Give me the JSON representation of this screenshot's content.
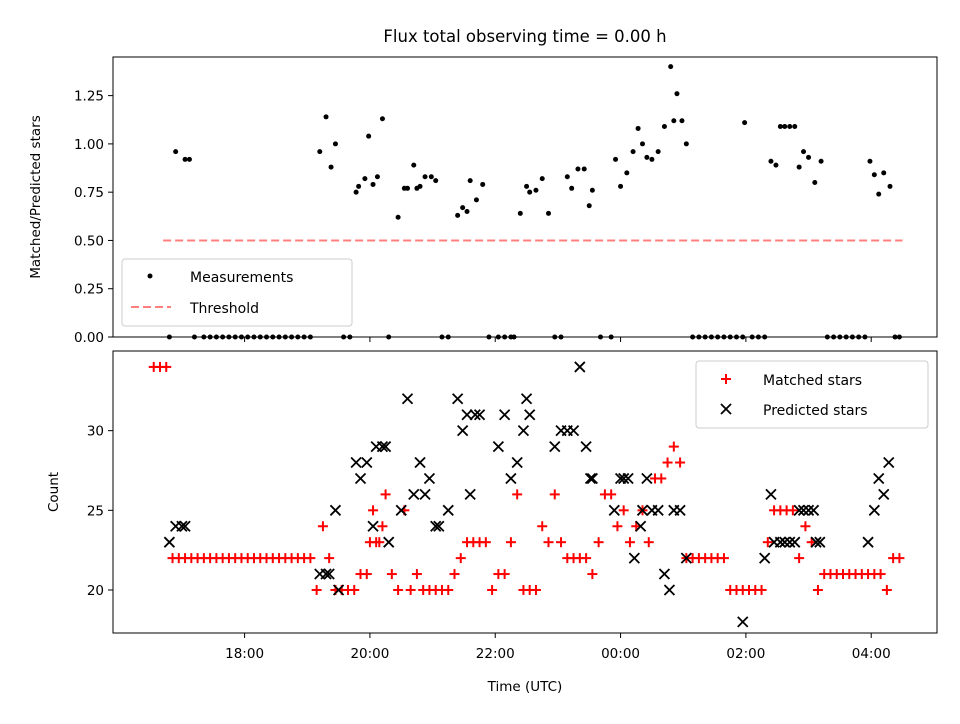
{
  "chart_data": [
    {
      "type": "scatter",
      "title": "Flux total observing time = 0.00 h",
      "xlabel": "",
      "ylabel": "Matched/Predicted stars",
      "x_unit": "hours UTC (values past 24 are after midnight)",
      "xlim": [
        15.9,
        29.05
      ],
      "ylim": [
        0,
        1.45
      ],
      "yticks": [
        "0.00",
        "0.25",
        "0.50",
        "0.75",
        "1.00",
        "1.25"
      ],
      "legend_loc": "lower-left",
      "grid": false,
      "threshold": {
        "name": "Threshold",
        "value": 0.5,
        "x_start": 16.7,
        "x_end": 28.5,
        "color": "#ff7f7f"
      },
      "series": [
        {
          "name": "Measurements",
          "color": "#000000",
          "x": [
            16.8,
            16.9,
            17.05,
            17.12,
            17.2,
            17.35,
            17.45,
            17.55,
            17.65,
            17.75,
            17.85,
            17.95,
            18.05,
            18.15,
            18.25,
            18.35,
            18.45,
            18.55,
            18.65,
            18.75,
            18.85,
            18.95,
            19.05,
            19.2,
            19.3,
            19.38,
            19.45,
            19.58,
            19.68,
            19.78,
            19.82,
            19.92,
            19.98,
            20.05,
            20.12,
            20.2,
            20.3,
            20.45,
            20.55,
            20.6,
            20.7,
            20.75,
            20.8,
            20.88,
            20.98,
            21.05,
            21.15,
            21.25,
            21.4,
            21.48,
            21.55,
            21.6,
            21.7,
            21.8,
            21.9,
            22.05,
            22.15,
            22.25,
            22.3,
            22.4,
            22.5,
            22.55,
            22.65,
            22.75,
            22.85,
            22.95,
            23.05,
            23.15,
            23.22,
            23.32,
            23.42,
            23.5,
            23.55,
            23.68,
            23.85,
            23.92,
            24.0,
            24.1,
            24.2,
            24.28,
            24.35,
            24.42,
            24.5,
            24.6,
            24.7,
            24.8,
            24.85,
            24.9,
            24.98,
            25.05,
            25.15,
            25.25,
            25.35,
            25.45,
            25.55,
            25.65,
            25.75,
            25.85,
            25.95,
            25.98,
            26.1,
            26.2,
            26.3,
            26.4,
            26.48,
            26.55,
            26.62,
            26.7,
            26.78,
            26.85,
            26.92,
            27.0,
            27.1,
            27.2,
            27.3,
            27.4,
            27.5,
            27.6,
            27.7,
            27.8,
            27.9,
            27.98,
            28.05,
            28.12,
            28.2,
            28.3,
            28.38,
            28.45
          ],
          "y": [
            0.0,
            0.96,
            0.92,
            0.92,
            0.0,
            0.0,
            0.0,
            0.0,
            0.0,
            0.0,
            0.0,
            0.0,
            0.0,
            0.0,
            0.0,
            0.0,
            0.0,
            0.0,
            0.0,
            0.0,
            0.0,
            0.0,
            0.0,
            0.96,
            1.14,
            0.88,
            1.0,
            0.0,
            0.0,
            0.75,
            0.78,
            0.82,
            1.04,
            0.79,
            0.83,
            1.13,
            0.0,
            0.62,
            0.77,
            0.77,
            0.89,
            0.77,
            0.78,
            0.83,
            0.83,
            0.81,
            0.0,
            0.0,
            0.63,
            0.67,
            0.65,
            0.81,
            0.71,
            0.79,
            0.0,
            0.0,
            0.0,
            0.0,
            0.0,
            0.64,
            0.78,
            0.75,
            0.76,
            0.82,
            0.64,
            0.0,
            0.0,
            0.83,
            0.77,
            0.87,
            0.87,
            0.68,
            0.76,
            0.0,
            0.0,
            0.92,
            0.78,
            0.85,
            0.96,
            1.08,
            1.0,
            0.93,
            0.92,
            0.96,
            1.09,
            1.4,
            1.12,
            1.26,
            1.12,
            1.0,
            0.0,
            0.0,
            0.0,
            0.0,
            0.0,
            0.0,
            0.0,
            0.0,
            0.0,
            1.11,
            0.0,
            0.0,
            0.0,
            0.91,
            0.89,
            1.09,
            1.09,
            1.09,
            1.09,
            0.88,
            0.96,
            0.93,
            0.8,
            0.91,
            0.0,
            0.0,
            0.0,
            0.0,
            0.0,
            0.0,
            0.0,
            0.91,
            0.84,
            0.74,
            0.85,
            0.78,
            0.0,
            0.0
          ]
        }
      ]
    },
    {
      "type": "scatter",
      "title": "",
      "xlabel": "Time (UTC)",
      "ylabel": "Count",
      "xlim": [
        15.9,
        29.05
      ],
      "ylim": [
        17.3,
        35.0
      ],
      "yticks": [
        "20",
        "25",
        "30"
      ],
      "xticks": [
        "18:00",
        "20:00",
        "22:00",
        "00:00",
        "02:00",
        "04:00"
      ],
      "legend_loc": "upper-right",
      "grid": false,
      "series": [
        {
          "name": "Matched stars",
          "marker": "+",
          "color": "#ff0000",
          "x": [
            16.55,
            16.65,
            16.75,
            16.85,
            16.95,
            17.05,
            17.15,
            17.25,
            17.35,
            17.45,
            17.55,
            17.65,
            17.75,
            17.85,
            17.95,
            18.05,
            18.15,
            18.25,
            18.35,
            18.45,
            18.55,
            18.65,
            18.75,
            18.85,
            18.95,
            19.05,
            19.15,
            19.25,
            19.35,
            19.45,
            19.55,
            19.65,
            19.75,
            19.85,
            19.95,
            20.0,
            20.05,
            20.1,
            20.15,
            20.2,
            20.25,
            20.35,
            20.45,
            20.55,
            20.65,
            20.75,
            20.85,
            20.95,
            21.05,
            21.15,
            21.25,
            21.35,
            21.45,
            21.55,
            21.65,
            21.75,
            21.85,
            21.95,
            22.05,
            22.15,
            22.25,
            22.35,
            22.45,
            22.55,
            22.65,
            22.75,
            22.85,
            22.95,
            23.05,
            23.15,
            23.25,
            23.35,
            23.45,
            23.55,
            23.65,
            23.75,
            23.85,
            23.95,
            24.05,
            24.15,
            24.25,
            24.35,
            24.45,
            24.55,
            24.65,
            24.75,
            24.85,
            24.95,
            25.05,
            25.15,
            25.25,
            25.35,
            25.45,
            25.55,
            25.65,
            25.75,
            25.85,
            25.95,
            26.05,
            26.15,
            26.25,
            26.35,
            26.45,
            26.55,
            26.65,
            26.75,
            26.85,
            26.95,
            27.05,
            27.15,
            27.25,
            27.35,
            27.45,
            27.55,
            27.65,
            27.75,
            27.85,
            27.95,
            28.05,
            28.15,
            28.25,
            28.35,
            28.45
          ],
          "y": [
            34,
            34,
            34,
            22,
            22,
            22,
            22,
            22,
            22,
            22,
            22,
            22,
            22,
            22,
            22,
            22,
            22,
            22,
            22,
            22,
            22,
            22,
            22,
            22,
            22,
            22,
            20,
            24,
            22,
            20,
            20,
            20,
            20,
            21,
            21,
            23,
            25,
            23,
            23,
            24,
            26,
            21,
            20,
            25,
            20,
            21,
            20,
            20,
            20,
            20,
            20,
            21,
            22,
            23,
            23,
            23,
            23,
            20,
            21,
            21,
            23,
            26,
            20,
            20,
            20,
            24,
            23,
            26,
            23,
            22,
            22,
            22,
            22,
            21,
            23,
            26,
            26,
            24,
            25,
            23,
            24,
            25,
            23,
            27,
            27,
            28,
            29,
            28,
            22,
            22,
            22,
            22,
            22,
            22,
            22,
            20,
            20,
            20,
            20,
            20,
            20,
            23,
            25,
            25,
            25,
            25,
            22,
            24,
            23,
            20,
            21,
            21,
            21,
            21,
            21,
            21,
            21,
            21,
            21,
            21,
            20,
            22,
            22
          ]
        },
        {
          "name": "Predicted stars",
          "marker": "x",
          "color": "#000000",
          "x": [
            16.8,
            16.9,
            17.0,
            17.05,
            19.2,
            19.3,
            19.35,
            19.45,
            19.5,
            19.78,
            19.85,
            19.95,
            20.05,
            20.1,
            20.2,
            20.25,
            20.3,
            20.5,
            20.6,
            20.7,
            20.8,
            20.88,
            20.95,
            21.05,
            21.1,
            21.25,
            21.4,
            21.48,
            21.55,
            21.6,
            21.68,
            21.75,
            22.05,
            22.15,
            22.25,
            22.35,
            22.45,
            22.5,
            22.55,
            22.95,
            23.05,
            23.15,
            23.25,
            23.35,
            23.45,
            23.52,
            23.55,
            23.9,
            24.0,
            24.05,
            24.12,
            24.22,
            24.32,
            24.35,
            24.42,
            24.5,
            24.6,
            24.7,
            24.78,
            24.85,
            24.95,
            25.05,
            25.95,
            26.3,
            26.4,
            26.45,
            26.55,
            26.62,
            26.7,
            26.78,
            26.85,
            26.92,
            27.0,
            27.08,
            27.12,
            27.18,
            27.95,
            28.05,
            28.12,
            28.2,
            28.28
          ],
          "y": [
            23,
            24,
            24,
            24,
            21,
            21,
            21,
            25,
            20,
            28,
            27,
            28,
            24,
            29,
            29,
            29,
            23,
            25,
            32,
            26,
            28,
            26,
            27,
            24,
            24,
            25,
            32,
            30,
            31,
            26,
            31,
            31,
            29,
            31,
            27,
            28,
            30,
            32,
            31,
            29,
            30,
            30,
            30,
            34,
            29,
            27,
            27,
            25,
            27,
            27,
            27,
            22,
            24,
            25,
            27,
            25,
            25,
            21,
            20,
            25,
            25,
            22,
            18,
            22,
            26,
            23,
            23,
            23,
            23,
            23,
            25,
            25,
            25,
            25,
            23,
            23,
            23,
            25,
            27,
            26,
            28
          ]
        }
      ]
    }
  ]
}
